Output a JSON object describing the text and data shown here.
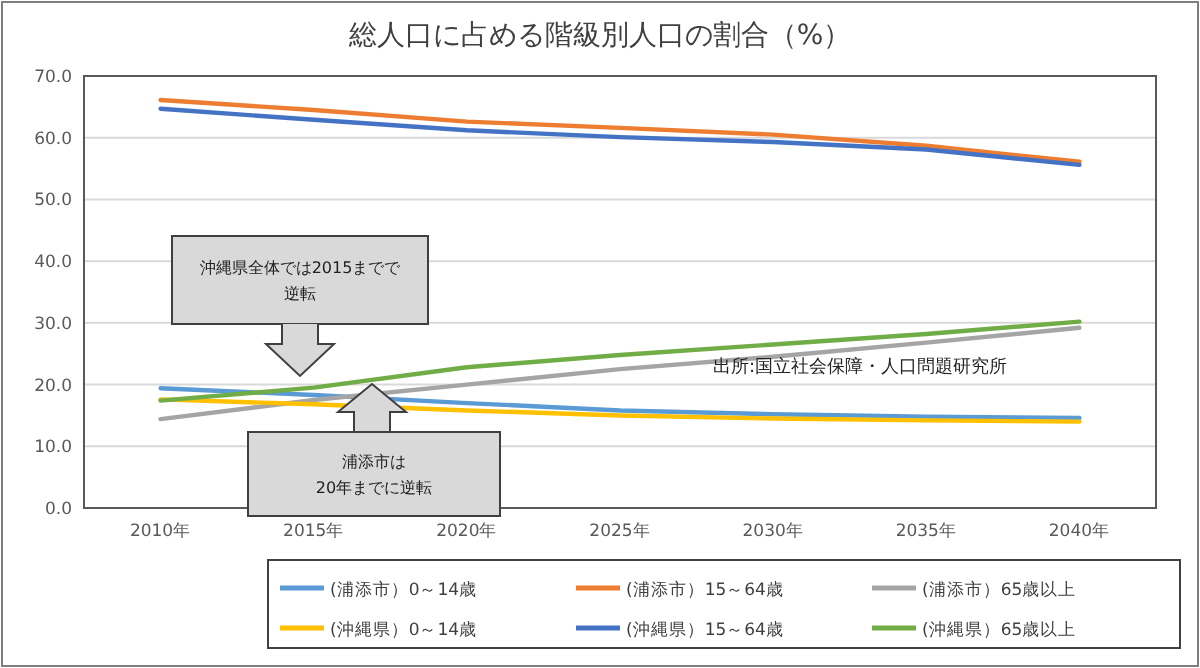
{
  "chart_data": {
    "type": "line",
    "title": "総人口に占める階級別人口の割合（%）",
    "categories": [
      "2010年",
      "2015年",
      "2020年",
      "2025年",
      "2030年",
      "2035年",
      "2040年"
    ],
    "series": [
      {
        "name": "(浦添市）0～14歳",
        "color": "#5b9bd5",
        "values": [
          19.4,
          18.3,
          17.0,
          15.8,
          15.2,
          14.8,
          14.6
        ]
      },
      {
        "name": "(浦添市）15～64歳",
        "color": "#ed7d31",
        "values": [
          66.1,
          64.5,
          62.6,
          61.6,
          60.5,
          58.7,
          56.1
        ]
      },
      {
        "name": "(浦添市）65歳以上",
        "color": "#a5a5a5",
        "values": [
          14.4,
          17.5,
          20.0,
          22.5,
          24.5,
          26.8,
          29.2
        ]
      },
      {
        "name": "(沖縄県）0～14歳",
        "color": "#ffc000",
        "values": [
          17.6,
          16.8,
          15.8,
          15.0,
          14.5,
          14.2,
          14.0
        ]
      },
      {
        "name": "(沖縄県）15～64歳",
        "color": "#4472c4",
        "values": [
          64.7,
          62.9,
          61.2,
          60.1,
          59.3,
          58.1,
          55.6
        ]
      },
      {
        "name": "(沖縄県）65歳以上",
        "color": "#70ad47",
        "values": [
          17.4,
          19.5,
          22.8,
          24.8,
          26.5,
          28.2,
          30.2
        ]
      }
    ],
    "ylim": [
      0,
      70
    ],
    "yticks": [
      {
        "value": 0,
        "label": "0.0"
      },
      {
        "value": 10,
        "label": "10.0"
      },
      {
        "value": 20,
        "label": "20.0"
      },
      {
        "value": 30,
        "label": "30.0"
      },
      {
        "value": 40,
        "label": "40.0"
      },
      {
        "value": 50,
        "label": "50.0"
      },
      {
        "value": 60,
        "label": "60.0"
      },
      {
        "value": 70,
        "label": "70.0"
      }
    ],
    "grid": "y",
    "legend": "bottom",
    "marker": "none",
    "line_style": "solid",
    "annotations": [
      "沖縄県全体では2015までで逆転",
      "浦添市は20年までに逆転",
      "出所:国立社会保障・人口問題研究所"
    ]
  }
}
